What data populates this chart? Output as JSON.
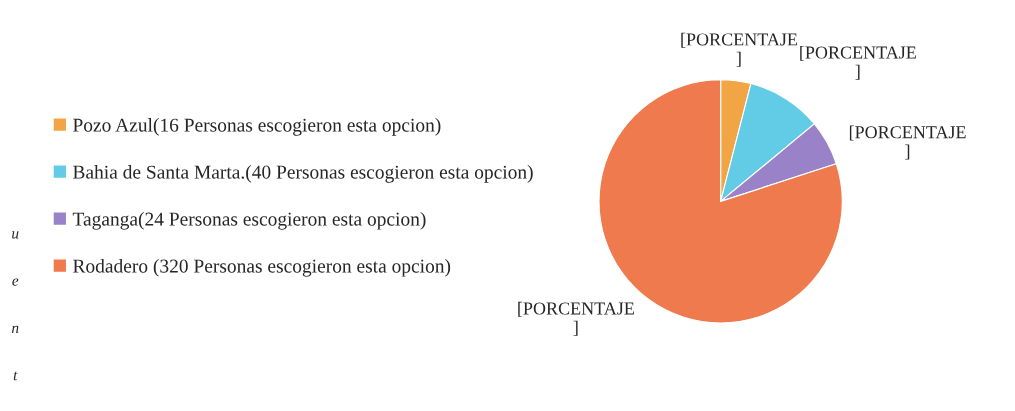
{
  "chart_data": {
    "type": "pie",
    "categories": [
      "Pozo Azul(16 Personas escogieron esta opcion)",
      "Bahia de Santa Marta.(40 Personas escogieron esta opcion)",
      "Taganga(24 Personas escogieron esta opcion)",
      "Rodadero (320 Personas escogieron esta opcion)"
    ],
    "values": [
      16,
      40,
      24,
      320
    ],
    "colors": [
      "#f2a545",
      "#62cbe6",
      "#9a82c9",
      "#ee7a4e"
    ],
    "value_labels": [
      "[PORCENTAJE\n]",
      "[PORCENTAJE\n]",
      "[PORCENTAJE\n]",
      "[PORCENTAJE\n]"
    ],
    "legend": "left",
    "annotations": [
      "u",
      "e",
      "n",
      "t"
    ]
  }
}
